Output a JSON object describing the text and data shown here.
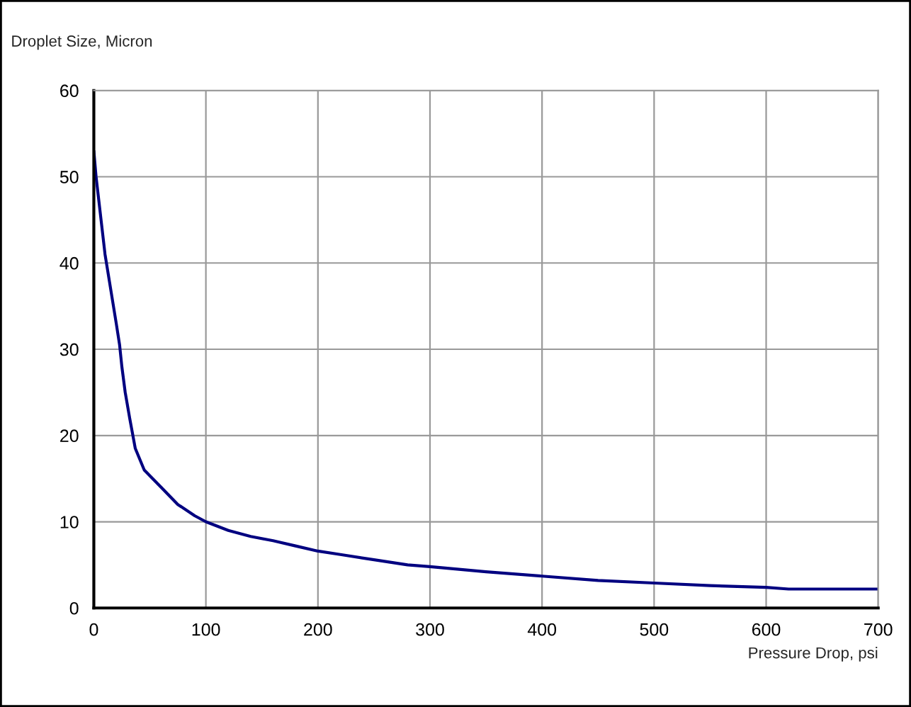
{
  "chart_data": {
    "type": "line",
    "xlabel": "Pressure Drop, psi",
    "ylabel": "Droplet Size, Micron",
    "series": [
      {
        "color": "#000080",
        "x": [
          0,
          2,
          10,
          20,
          23,
          25,
          28,
          32,
          37,
          45,
          60,
          75,
          90,
          100,
          120,
          140,
          160,
          180,
          200,
          220,
          250,
          280,
          300,
          350,
          400,
          450,
          500,
          550,
          600,
          620,
          700
        ],
        "values": [
          53,
          50,
          41,
          33,
          30.5,
          28,
          25,
          22,
          18.5,
          16,
          14,
          12,
          10.7,
          10,
          9,
          8.3,
          7.8,
          7.2,
          6.6,
          6.2,
          5.6,
          5,
          4.8,
          4.2,
          3.7,
          3.2,
          2.9,
          2.6,
          2.4,
          2.2,
          2.2
        ]
      }
    ],
    "xlim": [
      0,
      700
    ],
    "xticks": [
      0,
      100,
      200,
      300,
      400,
      500,
      600,
      700
    ],
    "ylim": [
      0,
      60
    ],
    "yticks": [
      0,
      10,
      20,
      30,
      40,
      50,
      60
    ],
    "grid": true,
    "legend": false,
    "marker": "none",
    "line_style": "solid"
  }
}
